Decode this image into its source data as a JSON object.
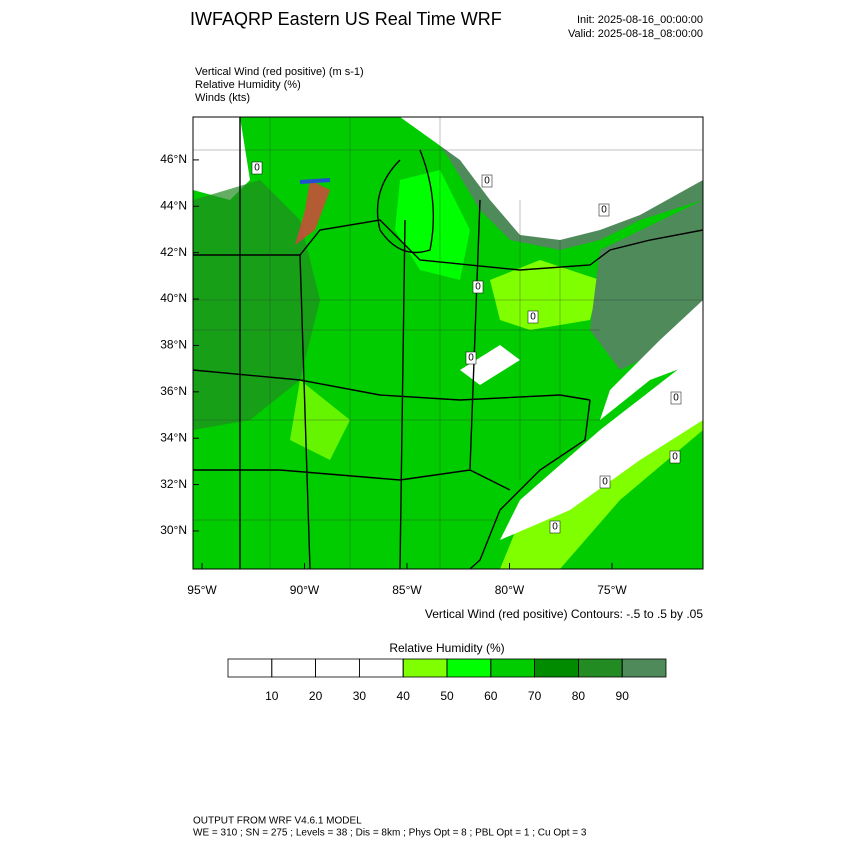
{
  "header": {
    "title": "IWFAQRP Eastern US Real Time WRF",
    "init": "Init: 2025-08-16_00:00:00",
    "valid": "Valid: 2025-08-18_08:00:00"
  },
  "fields": [
    "Vertical Wind (red positive)   (m s-1)",
    "Relative Humidity   (%)",
    "Winds   (kts)"
  ],
  "map": {
    "lat_lim": [
      28.36,
      47.85
    ],
    "lon_lim": [
      -95.44,
      -70.56
    ],
    "lat_ticks": [
      {
        "value": 30,
        "label": "30°N"
      },
      {
        "value": 32,
        "label": "32°N"
      },
      {
        "value": 34,
        "label": "34°N"
      },
      {
        "value": 36,
        "label": "36°N"
      },
      {
        "value": 38,
        "label": "38°N"
      },
      {
        "value": 40,
        "label": "40°N"
      },
      {
        "value": 42,
        "label": "42°N"
      },
      {
        "value": 44,
        "label": "44°N"
      },
      {
        "value": 46,
        "label": "46°N"
      }
    ],
    "lon_ticks": [
      {
        "value": -95,
        "label": "95°W"
      },
      {
        "value": -90,
        "label": "90°W"
      },
      {
        "value": -85,
        "label": "85°W"
      },
      {
        "value": -80,
        "label": "80°W"
      },
      {
        "value": -75,
        "label": "75°W"
      }
    ],
    "contour_labels": [
      "0",
      "0",
      "0",
      "0",
      "0",
      "0",
      "0",
      "0",
      "0",
      "0"
    ],
    "contour_info": "Vertical Wind (red positive) Contours: -.5 to .5 by .05"
  },
  "colorbar": {
    "title": "Relative Humidity  (%)",
    "lim": [
      0,
      100
    ],
    "colors": [
      "#ffffff",
      "#ffffff",
      "#ffffff",
      "#ffffff",
      "#80ff00",
      "#00ff00",
      "#00cc00",
      "#008b00",
      "#228b22",
      "#4f8a5a"
    ],
    "ticks": [
      10,
      20,
      30,
      40,
      50,
      60,
      70,
      80,
      90
    ]
  },
  "footer": [
    "OUTPUT FROM WRF V4.6.1 MODEL",
    "WE = 310 ; SN = 275 ; Levels = 38 ; Dis = 8km ; Phys Opt = 8 ; PBL Opt = 1 ; Cu Opt = 3"
  ]
}
